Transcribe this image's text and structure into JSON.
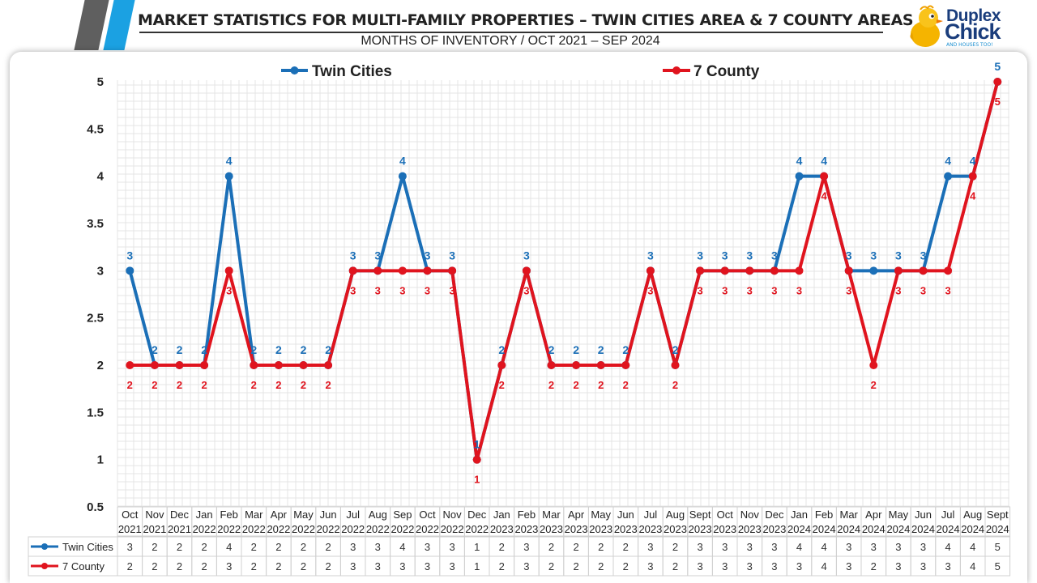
{
  "header": {
    "title": "MARKET STATISTICS FOR MULTI-FAMILY PROPERTIES  – TWIN CITIES AREA & 7 COUNTY AREAS",
    "subtitle": "MONTHS OF INVENTORY / OCT 2021 – SEP 2024"
  },
  "logo": {
    "line1": "Duplex",
    "line2": "Chick",
    "tagline": "AND HOUSES TOO!"
  },
  "colors": {
    "twin": "#1b6fb7",
    "county": "#e0141e",
    "blueStripe": "#1ba1e2",
    "darkStripe": "#5f5f5f"
  },
  "chart_data": {
    "type": "line",
    "title": "MONTHS OF INVENTORY / OCT 2021 – SEP 2024",
    "ylim": [
      0.5,
      5
    ],
    "yticks": [
      "0.5",
      "1",
      "1.5",
      "2",
      "2.5",
      "3",
      "3.5",
      "4",
      "4.5",
      "5"
    ],
    "grid": true,
    "legend": "top",
    "categories": [
      {
        "month": "Oct",
        "year": "2021"
      },
      {
        "month": "Nov",
        "year": "2021"
      },
      {
        "month": "Dec",
        "year": "2021"
      },
      {
        "month": "Jan",
        "year": "2022"
      },
      {
        "month": "Feb",
        "year": "2022"
      },
      {
        "month": "Mar",
        "year": "2022"
      },
      {
        "month": "Apr",
        "year": "2022"
      },
      {
        "month": "May",
        "year": "2022"
      },
      {
        "month": "Jun",
        "year": "2022"
      },
      {
        "month": "Jul",
        "year": "2022"
      },
      {
        "month": "Aug",
        "year": "2022"
      },
      {
        "month": "Sep",
        "year": "2022"
      },
      {
        "month": "Oct",
        "year": "2022"
      },
      {
        "month": "Nov",
        "year": "2022"
      },
      {
        "month": "Dec",
        "year": "2022"
      },
      {
        "month": "Jan",
        "year": "2023"
      },
      {
        "month": "Feb",
        "year": "2023"
      },
      {
        "month": "Mar",
        "year": "2023"
      },
      {
        "month": "Apr",
        "year": "2023"
      },
      {
        "month": "May",
        "year": "2023"
      },
      {
        "month": "Jun",
        "year": "2023"
      },
      {
        "month": "Jul",
        "year": "2023"
      },
      {
        "month": "Aug",
        "year": "2023"
      },
      {
        "month": "Sept",
        "year": "2023"
      },
      {
        "month": "Oct",
        "year": "2023"
      },
      {
        "month": "Nov",
        "year": "2023"
      },
      {
        "month": "Dec",
        "year": "2023"
      },
      {
        "month": "Jan",
        "year": "2024"
      },
      {
        "month": "Feb",
        "year": "2024"
      },
      {
        "month": "Mar",
        "year": "2024"
      },
      {
        "month": "Apr",
        "year": "2024"
      },
      {
        "month": "May",
        "year": "2024"
      },
      {
        "month": "Jun",
        "year": "2024"
      },
      {
        "month": "Jul",
        "year": "2024"
      },
      {
        "month": "Aug",
        "year": "2024"
      },
      {
        "month": "Sept",
        "year": "2024"
      }
    ],
    "series": [
      {
        "name": "Twin Cities",
        "color": "#1b6fb7",
        "values": [
          3,
          2,
          2,
          2,
          4,
          2,
          2,
          2,
          2,
          3,
          3,
          4,
          3,
          3,
          1,
          2,
          3,
          2,
          2,
          2,
          2,
          3,
          2,
          3,
          3,
          3,
          3,
          4,
          4,
          3,
          3,
          3,
          3,
          4,
          4,
          5
        ]
      },
      {
        "name": "7 County",
        "color": "#e0141e",
        "values": [
          2,
          2,
          2,
          2,
          3,
          2,
          2,
          2,
          2,
          3,
          3,
          3,
          3,
          3,
          1,
          2,
          3,
          2,
          2,
          2,
          2,
          3,
          2,
          3,
          3,
          3,
          3,
          3,
          4,
          3,
          2,
          3,
          3,
          3,
          4,
          5
        ]
      }
    ]
  }
}
